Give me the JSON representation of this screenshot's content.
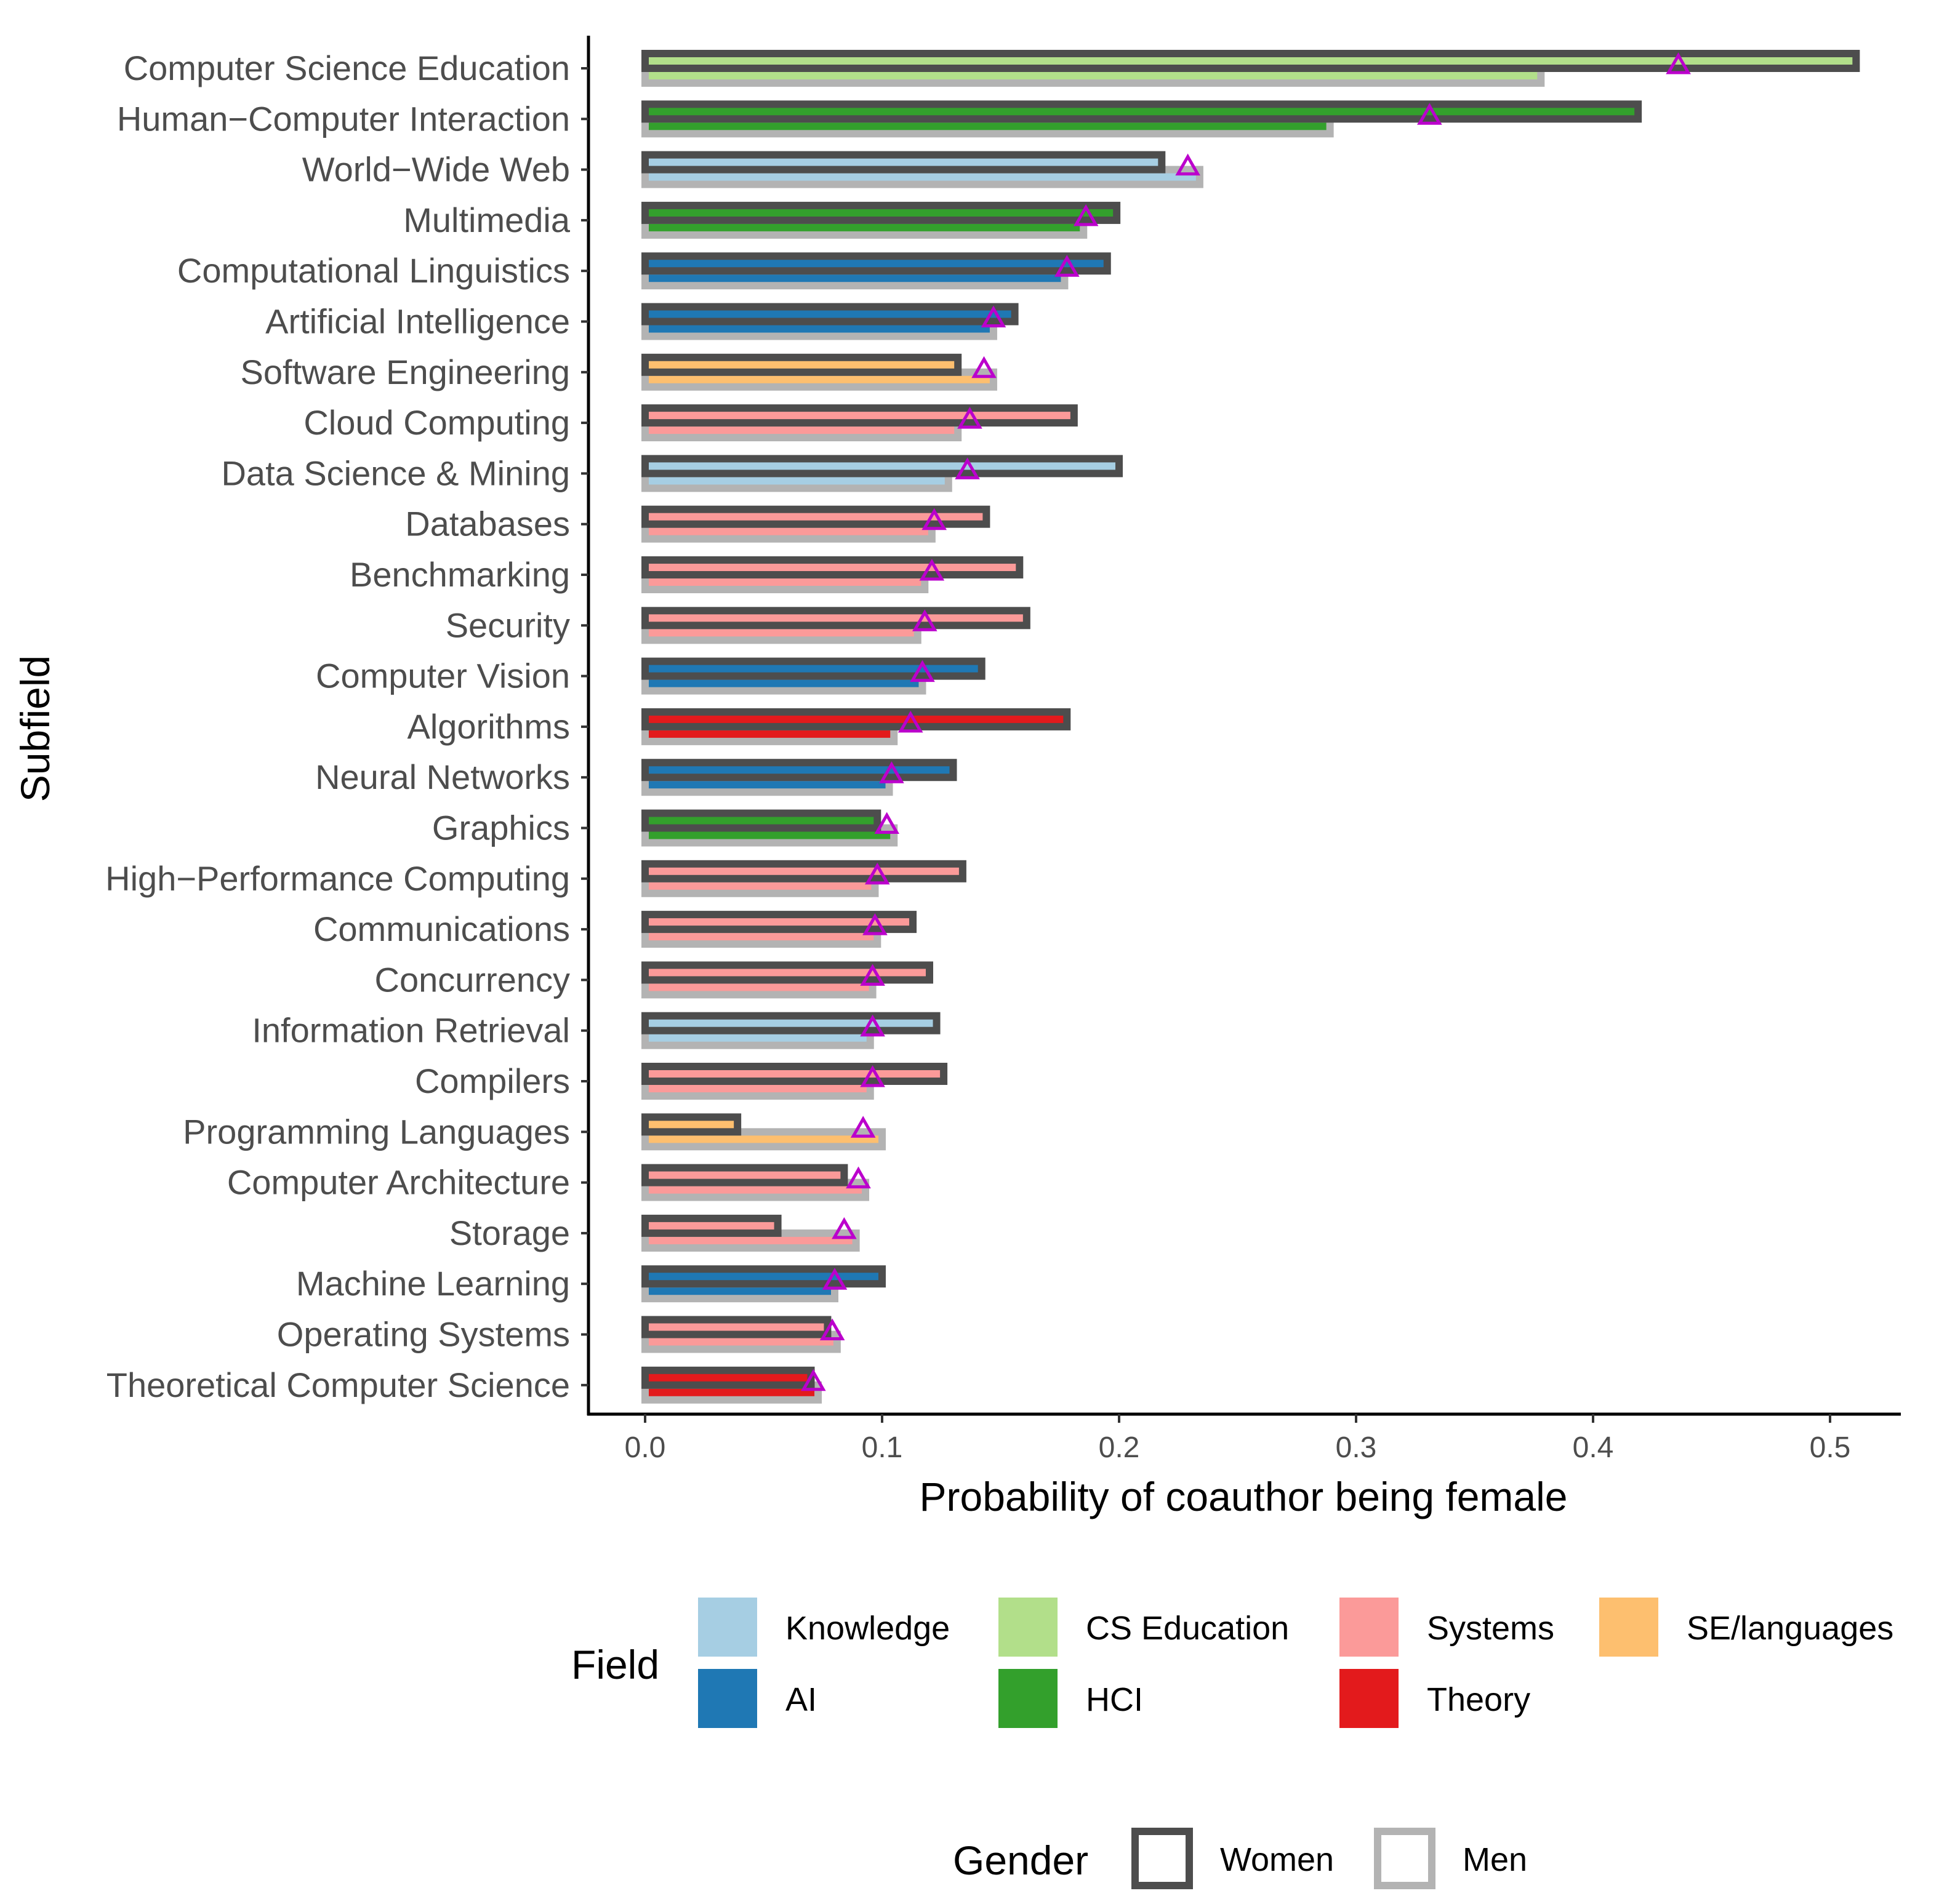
{
  "chart_data": {
    "type": "bar",
    "orientation": "horizontal",
    "xlabel": "Probability of coauthor being female",
    "ylabel": "Subfield",
    "xlim": [
      -0.025,
      0.535
    ],
    "xticks": [
      "0.0",
      "0.1",
      "0.2",
      "0.3",
      "0.4",
      "0.5"
    ],
    "xtick_values": [
      0.0,
      0.1,
      0.2,
      0.3,
      0.4,
      0.5
    ],
    "grid": false,
    "legend_position": "bottom",
    "categories": [
      "Computer Science Education",
      "Human−Computer Interaction",
      "World−Wide Web",
      "Multimedia",
      "Computational Linguistics",
      "Artificial Intelligence",
      "Software Engineering",
      "Cloud Computing",
      "Data Science & Mining",
      "Databases",
      "Benchmarking",
      "Security",
      "Computer Vision",
      "Algorithms",
      "Neural Networks",
      "Graphics",
      "High−Performance Computing",
      "Communications",
      "Concurrency",
      "Information Retrieval",
      "Compilers",
      "Programming Languages",
      "Computer Architecture",
      "Storage",
      "Machine Learning",
      "Operating Systems",
      "Theoretical Computer Science"
    ],
    "field_of_category": [
      "CS Education",
      "HCI",
      "Knowledge",
      "HCI",
      "AI",
      "AI",
      "SE/languages",
      "Systems",
      "Knowledge",
      "Systems",
      "Systems",
      "Systems",
      "AI",
      "Theory",
      "AI",
      "HCI",
      "Systems",
      "Systems",
      "Systems",
      "Knowledge",
      "Systems",
      "SE/languages",
      "Systems",
      "Systems",
      "AI",
      "Systems",
      "Theory"
    ],
    "series": [
      {
        "name": "Women",
        "outline_color": "#4d4d4d",
        "values": [
          0.511,
          0.419,
          0.218,
          0.199,
          0.195,
          0.156,
          0.132,
          0.181,
          0.2,
          0.144,
          0.158,
          0.161,
          0.142,
          0.178,
          0.13,
          0.098,
          0.134,
          0.113,
          0.12,
          0.123,
          0.126,
          0.039,
          0.084,
          0.056,
          0.1,
          0.077,
          0.07
        ]
      },
      {
        "name": "Men",
        "outline_color": "#b3b3b3",
        "values": [
          0.378,
          0.289,
          0.234,
          0.185,
          0.177,
          0.147,
          0.147,
          0.132,
          0.128,
          0.121,
          0.118,
          0.115,
          0.117,
          0.105,
          0.103,
          0.105,
          0.097,
          0.098,
          0.096,
          0.095,
          0.095,
          0.1,
          0.093,
          0.089,
          0.08,
          0.081,
          0.073
        ]
      }
    ],
    "markers": {
      "name": "",
      "shape": "triangle",
      "color": "#bb00cc",
      "values": [
        0.436,
        0.331,
        0.229,
        0.186,
        0.178,
        0.147,
        0.143,
        0.137,
        0.136,
        0.122,
        0.121,
        0.118,
        0.117,
        0.112,
        0.104,
        0.102,
        0.098,
        0.097,
        0.096,
        0.096,
        0.096,
        0.092,
        0.09,
        0.084,
        0.08,
        0.079,
        0.071
      ]
    },
    "legends": [
      {
        "title": "Field",
        "items": [
          {
            "label": "Knowledge",
            "color": "#a6cee3"
          },
          {
            "label": "AI",
            "color": "#1f78b4"
          },
          {
            "label": "CS Education",
            "color": "#b2df8a"
          },
          {
            "label": "HCI",
            "color": "#33a02c"
          },
          {
            "label": "Systems",
            "color": "#fb9a99"
          },
          {
            "label": "Theory",
            "color": "#e31a1c"
          },
          {
            "label": "SE/languages",
            "color": "#fdbf6f"
          }
        ]
      },
      {
        "title": "Gender",
        "items": [
          {
            "label": "Women",
            "color": "#4d4d4d"
          },
          {
            "label": "Men",
            "color": "#b3b3b3"
          }
        ]
      }
    ]
  }
}
